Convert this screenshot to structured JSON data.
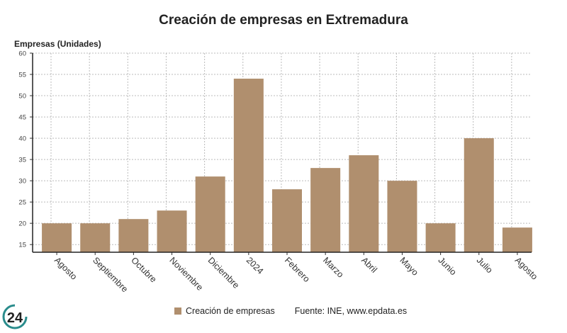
{
  "chart_data": {
    "type": "bar",
    "title": "Creación de empresas en Extremadura",
    "ylabel": "Empresas (Unidades)",
    "xlabel": "",
    "categories": [
      "Agosto",
      "Septiembre",
      "Octubre",
      "Noviembre",
      "Diciembre",
      "2024",
      "Febrero",
      "Marzo",
      "Abril",
      "Mayo",
      "Junio",
      "Julio",
      "Agosto"
    ],
    "series": [
      {
        "name": "Creación de empresas",
        "values": [
          20,
          20,
          21,
          23,
          31,
          54,
          28,
          33,
          36,
          30,
          20,
          40,
          19
        ],
        "color": "#b08f6e"
      }
    ],
    "ylim": [
      13.2,
      60
    ],
    "yticks": [
      15,
      20,
      25,
      30,
      35,
      40,
      45,
      50,
      55,
      60
    ],
    "grid": true,
    "legend": "bottom"
  },
  "source": "Fuente: INE, www.epdata.es",
  "logo_text": "24"
}
